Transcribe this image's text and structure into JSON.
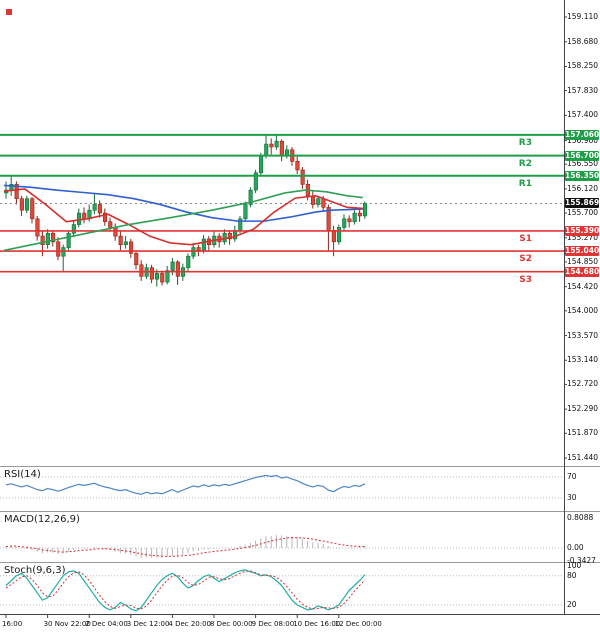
{
  "chart_data": {
    "type": "candlestick",
    "price_axis_labels": [
      "159.110",
      "158.680",
      "158.250",
      "157.830",
      "157.400",
      "156.960",
      "156.550",
      "156.120",
      "155.700",
      "155.270",
      "154.850",
      "154.420",
      "154.000",
      "153.570",
      "153.140",
      "152.720",
      "152.290",
      "151.870",
      "151.440"
    ],
    "time_labels": [
      {
        "index": 0,
        "label": "16:00"
      },
      {
        "index": 8,
        "label": "30 Nov 22:00"
      },
      {
        "index": 16,
        "label": "2 Dec 04:00"
      },
      {
        "index": 24,
        "label": "3 Dec 12:00"
      },
      {
        "index": 32,
        "label": "4 Dec 20:00"
      },
      {
        "index": 40,
        "label": "8 Dec 00:00"
      },
      {
        "index": 48,
        "label": "9 Dec 08:00"
      },
      {
        "index": 56,
        "label": "10 Dec 16:00"
      },
      {
        "index": 64,
        "label": "12 Dec 00:00"
      }
    ],
    "levels": {
      "resistance": [
        {
          "name": "R3",
          "price": 157.06,
          "tag": "157.060"
        },
        {
          "name": "R2",
          "price": 156.7,
          "tag": "156.700"
        },
        {
          "name": "R1",
          "price": 156.35,
          "tag": "156.350"
        }
      ],
      "support": [
        {
          "name": "S1",
          "price": 155.39,
          "tag": "155.390"
        },
        {
          "name": "S2",
          "price": 155.04,
          "tag": "155.040"
        },
        {
          "name": "S3",
          "price": 154.68,
          "tag": "154.680"
        }
      ],
      "current_price": {
        "price": 155.869,
        "tag": "155.869"
      }
    },
    "candles": [
      [
        156.05,
        156.25,
        155.95,
        156.1
      ],
      [
        156.1,
        156.35,
        156.0,
        156.2
      ],
      [
        156.2,
        156.25,
        155.85,
        155.95
      ],
      [
        155.95,
        156.0,
        155.65,
        155.75
      ],
      [
        155.75,
        156.0,
        155.7,
        155.95
      ],
      [
        155.95,
        155.98,
        155.52,
        155.6
      ],
      [
        155.6,
        155.65,
        155.22,
        155.3
      ],
      [
        155.3,
        155.38,
        154.95,
        155.15
      ],
      [
        155.15,
        155.42,
        155.08,
        155.35
      ],
      [
        155.35,
        155.4,
        155.12,
        155.2
      ],
      [
        155.2,
        155.28,
        154.88,
        154.95
      ],
      [
        154.95,
        155.15,
        154.68,
        155.1
      ],
      [
        155.1,
        155.4,
        155.05,
        155.35
      ],
      [
        155.35,
        155.58,
        155.28,
        155.5
      ],
      [
        155.5,
        155.78,
        155.45,
        155.7
      ],
      [
        155.7,
        155.8,
        155.52,
        155.6
      ],
      [
        155.6,
        155.85,
        155.55,
        155.75
      ],
      [
        155.75,
        156.05,
        155.68,
        155.85
      ],
      [
        155.85,
        155.92,
        155.62,
        155.7
      ],
      [
        155.7,
        155.78,
        155.48,
        155.55
      ],
      [
        155.55,
        155.62,
        155.38,
        155.45
      ],
      [
        155.45,
        155.52,
        155.22,
        155.3
      ],
      [
        155.3,
        155.38,
        155.05,
        155.15
      ],
      [
        155.15,
        155.3,
        155.08,
        155.2
      ],
      [
        155.2,
        155.25,
        154.92,
        155.0
      ],
      [
        155.0,
        155.05,
        154.72,
        154.8
      ],
      [
        154.8,
        154.88,
        154.52,
        154.6
      ],
      [
        154.6,
        154.82,
        154.55,
        154.75
      ],
      [
        154.75,
        154.8,
        154.48,
        154.55
      ],
      [
        154.55,
        154.72,
        154.42,
        154.65
      ],
      [
        154.65,
        154.7,
        154.44,
        154.5
      ],
      [
        154.5,
        154.78,
        154.46,
        154.7
      ],
      [
        154.7,
        154.92,
        154.62,
        154.85
      ],
      [
        154.85,
        154.88,
        154.45,
        154.6
      ],
      [
        154.6,
        154.82,
        154.52,
        154.75
      ],
      [
        154.75,
        155.0,
        154.68,
        154.95
      ],
      [
        154.95,
        155.18,
        154.9,
        155.1
      ],
      [
        155.1,
        155.15,
        154.95,
        155.05
      ],
      [
        155.05,
        155.32,
        155.0,
        155.25
      ],
      [
        155.25,
        155.3,
        155.05,
        155.15
      ],
      [
        155.15,
        155.38,
        155.1,
        155.3
      ],
      [
        155.3,
        155.35,
        155.1,
        155.2
      ],
      [
        155.2,
        155.42,
        155.15,
        155.35
      ],
      [
        155.35,
        155.4,
        155.15,
        155.25
      ],
      [
        155.25,
        155.48,
        155.2,
        155.4
      ],
      [
        155.4,
        155.65,
        155.35,
        155.6
      ],
      [
        155.6,
        155.9,
        155.55,
        155.85
      ],
      [
        155.85,
        156.15,
        155.8,
        156.1
      ],
      [
        156.1,
        156.45,
        156.05,
        156.4
      ],
      [
        156.4,
        156.75,
        156.35,
        156.7
      ],
      [
        156.7,
        157.05,
        156.65,
        156.9
      ],
      [
        156.9,
        157.0,
        156.72,
        156.85
      ],
      [
        156.85,
        157.06,
        156.8,
        156.95
      ],
      [
        156.95,
        156.98,
        156.6,
        156.7
      ],
      [
        156.7,
        156.88,
        156.65,
        156.8
      ],
      [
        156.8,
        156.85,
        156.52,
        156.6
      ],
      [
        156.6,
        156.68,
        156.38,
        156.45
      ],
      [
        156.45,
        156.5,
        156.12,
        156.2
      ],
      [
        156.2,
        156.28,
        155.92,
        156.0
      ],
      [
        156.0,
        156.08,
        155.78,
        155.85
      ],
      [
        155.85,
        156.0,
        155.8,
        155.95
      ],
      [
        155.95,
        156.0,
        155.72,
        155.8
      ],
      [
        155.8,
        155.85,
        155.05,
        155.4
      ],
      [
        155.4,
        155.48,
        154.95,
        155.2
      ],
      [
        155.2,
        155.5,
        155.15,
        155.45
      ],
      [
        155.45,
        155.68,
        155.4,
        155.6
      ],
      [
        155.6,
        155.66,
        155.45,
        155.55
      ],
      [
        155.55,
        155.75,
        155.5,
        155.7
      ],
      [
        155.7,
        155.76,
        155.55,
        155.65
      ],
      [
        155.65,
        155.9,
        155.6,
        155.87
      ]
    ],
    "moving_averages": [
      {
        "name": "ma-blue",
        "color": "#2f5fd0",
        "points": [
          [
            0,
            156.18
          ],
          [
            5,
            156.15
          ],
          [
            10,
            156.1
          ],
          [
            15,
            156.06
          ],
          [
            20,
            156.02
          ],
          [
            25,
            155.95
          ],
          [
            30,
            155.85
          ],
          [
            35,
            155.72
          ],
          [
            40,
            155.62
          ],
          [
            45,
            155.56
          ],
          [
            50,
            155.56
          ],
          [
            55,
            155.63
          ],
          [
            60,
            155.72
          ],
          [
            63,
            155.75
          ],
          [
            69,
            155.77
          ]
        ]
      },
      {
        "name": "ma-red",
        "color": "#d43030",
        "points": [
          [
            0,
            156.08
          ],
          [
            4,
            156.12
          ],
          [
            8,
            155.85
          ],
          [
            12,
            155.55
          ],
          [
            16,
            155.6
          ],
          [
            20,
            155.68
          ],
          [
            24,
            155.5
          ],
          [
            28,
            155.3
          ],
          [
            32,
            155.18
          ],
          [
            36,
            155.15
          ],
          [
            40,
            155.22
          ],
          [
            44,
            155.28
          ],
          [
            48,
            155.42
          ],
          [
            52,
            155.72
          ],
          [
            56,
            155.96
          ],
          [
            60,
            156.0
          ],
          [
            63,
            155.9
          ],
          [
            66,
            155.8
          ],
          [
            69,
            155.78
          ]
        ]
      },
      {
        "name": "ma-green",
        "color": "#2fa055",
        "points": [
          [
            0,
            155.05
          ],
          [
            8,
            155.2
          ],
          [
            16,
            155.35
          ],
          [
            24,
            155.5
          ],
          [
            32,
            155.62
          ],
          [
            40,
            155.75
          ],
          [
            48,
            155.9
          ],
          [
            54,
            156.05
          ],
          [
            58,
            156.1
          ],
          [
            62,
            156.07
          ],
          [
            66,
            156.0
          ],
          [
            69,
            155.97
          ]
        ]
      }
    ],
    "indicators": {
      "rsi": {
        "label": "RSI(14)",
        "axis_labels": [
          "70",
          "30"
        ],
        "levels": [
          70,
          30
        ],
        "values": [
          55,
          57,
          54,
          51,
          54,
          50,
          46,
          44,
          48,
          46,
          43,
          46,
          50,
          53,
          56,
          54,
          56,
          58,
          54,
          51,
          49,
          46,
          44,
          46,
          42,
          39,
          37,
          41,
          38,
          40,
          38,
          42,
          46,
          41,
          45,
          49,
          53,
          51,
          55,
          52,
          55,
          53,
          56,
          54,
          57,
          60,
          63,
          66,
          69,
          71,
          73,
          71,
          73,
          68,
          70,
          66,
          63,
          58,
          54,
          51,
          54,
          52,
          45,
          42,
          48,
          52,
          50,
          54,
          52,
          57
        ]
      },
      "macd": {
        "label": "MACD(12,26,9)",
        "axis_labels": [
          "0.8088",
          "0.00",
          "-0.3427"
        ],
        "histogram": [
          0.05,
          0.08,
          0.04,
          0.0,
          -0.02,
          -0.05,
          -0.1,
          -0.14,
          -0.12,
          -0.13,
          -0.16,
          -0.14,
          -0.1,
          -0.06,
          -0.02,
          -0.03,
          -0.01,
          0.02,
          0.0,
          -0.03,
          -0.06,
          -0.1,
          -0.14,
          -0.15,
          -0.18,
          -0.22,
          -0.26,
          -0.25,
          -0.27,
          -0.26,
          -0.27,
          -0.24,
          -0.2,
          -0.22,
          -0.19,
          -0.14,
          -0.09,
          -0.08,
          -0.04,
          -0.04,
          -0.02,
          -0.02,
          0.0,
          0.0,
          0.02,
          0.05,
          0.09,
          0.14,
          0.2,
          0.26,
          0.31,
          0.33,
          0.35,
          0.34,
          0.33,
          0.31,
          0.28,
          0.24,
          0.19,
          0.15,
          0.13,
          0.11,
          0.05,
          0.0,
          -0.01,
          0.0,
          0.01,
          0.02,
          0.03,
          0.05
        ],
        "signal": [
          0.04,
          0.05,
          0.05,
          0.03,
          0.02,
          0.0,
          -0.02,
          -0.05,
          -0.07,
          -0.08,
          -0.1,
          -0.11,
          -0.1,
          -0.09,
          -0.07,
          -0.06,
          -0.05,
          -0.03,
          -0.02,
          -0.02,
          -0.03,
          -0.04,
          -0.06,
          -0.08,
          -0.1,
          -0.13,
          -0.16,
          -0.18,
          -0.2,
          -0.21,
          -0.22,
          -0.23,
          -0.22,
          -0.22,
          -0.21,
          -0.2,
          -0.18,
          -0.16,
          -0.13,
          -0.11,
          -0.09,
          -0.08,
          -0.06,
          -0.05,
          -0.03,
          -0.01,
          0.01,
          0.04,
          0.07,
          0.11,
          0.15,
          0.19,
          0.22,
          0.25,
          0.27,
          0.28,
          0.28,
          0.27,
          0.26,
          0.24,
          0.21,
          0.19,
          0.16,
          0.13,
          0.1,
          0.08,
          0.06,
          0.05,
          0.04,
          0.04
        ]
      },
      "stoch": {
        "label": "Stoch(9,6,3)",
        "axis_labels": [
          "100",
          "80",
          "20"
        ],
        "levels": [
          80,
          20
        ],
        "k": [
          60,
          70,
          80,
          85,
          75,
          60,
          45,
          30,
          35,
          50,
          65,
          80,
          88,
          90,
          85,
          70,
          55,
          40,
          25,
          15,
          10,
          15,
          25,
          20,
          12,
          8,
          15,
          30,
          45,
          60,
          72,
          80,
          85,
          78,
          65,
          55,
          60,
          70,
          78,
          82,
          75,
          68,
          74,
          80,
          86,
          90,
          92,
          88,
          85,
          80,
          82,
          78,
          70,
          60,
          45,
          30,
          20,
          15,
          10,
          12,
          18,
          15,
          10,
          14,
          20,
          35,
          50,
          60,
          70,
          82
        ],
        "d": [
          55,
          62,
          70,
          78,
          80,
          73,
          60,
          45,
          37,
          38,
          50,
          65,
          78,
          86,
          88,
          82,
          70,
          55,
          40,
          27,
          17,
          13,
          17,
          20,
          19,
          13,
          12,
          18,
          30,
          45,
          59,
          71,
          79,
          81,
          76,
          66,
          60,
          62,
          69,
          77,
          78,
          74,
          72,
          74,
          80,
          85,
          89,
          90,
          86,
          82,
          81,
          80,
          77,
          69,
          58,
          45,
          32,
          22,
          15,
          12,
          13,
          15,
          14,
          13,
          15,
          23,
          35,
          48,
          60,
          71
        ]
      }
    },
    "colors": {
      "background": "#ffffff",
      "up_candle": "#26a65b",
      "down_candle": "#df4937",
      "resistance": "#1e9e46",
      "support": "#e03535",
      "current_price_tag": "#111111",
      "rsi_line": "#4f86c6",
      "macd_signal": "#d43030",
      "macd_histogram": "#b5b5b5",
      "stoch_k": "#1fb0a8",
      "stoch_d": "#d43030"
    }
  }
}
